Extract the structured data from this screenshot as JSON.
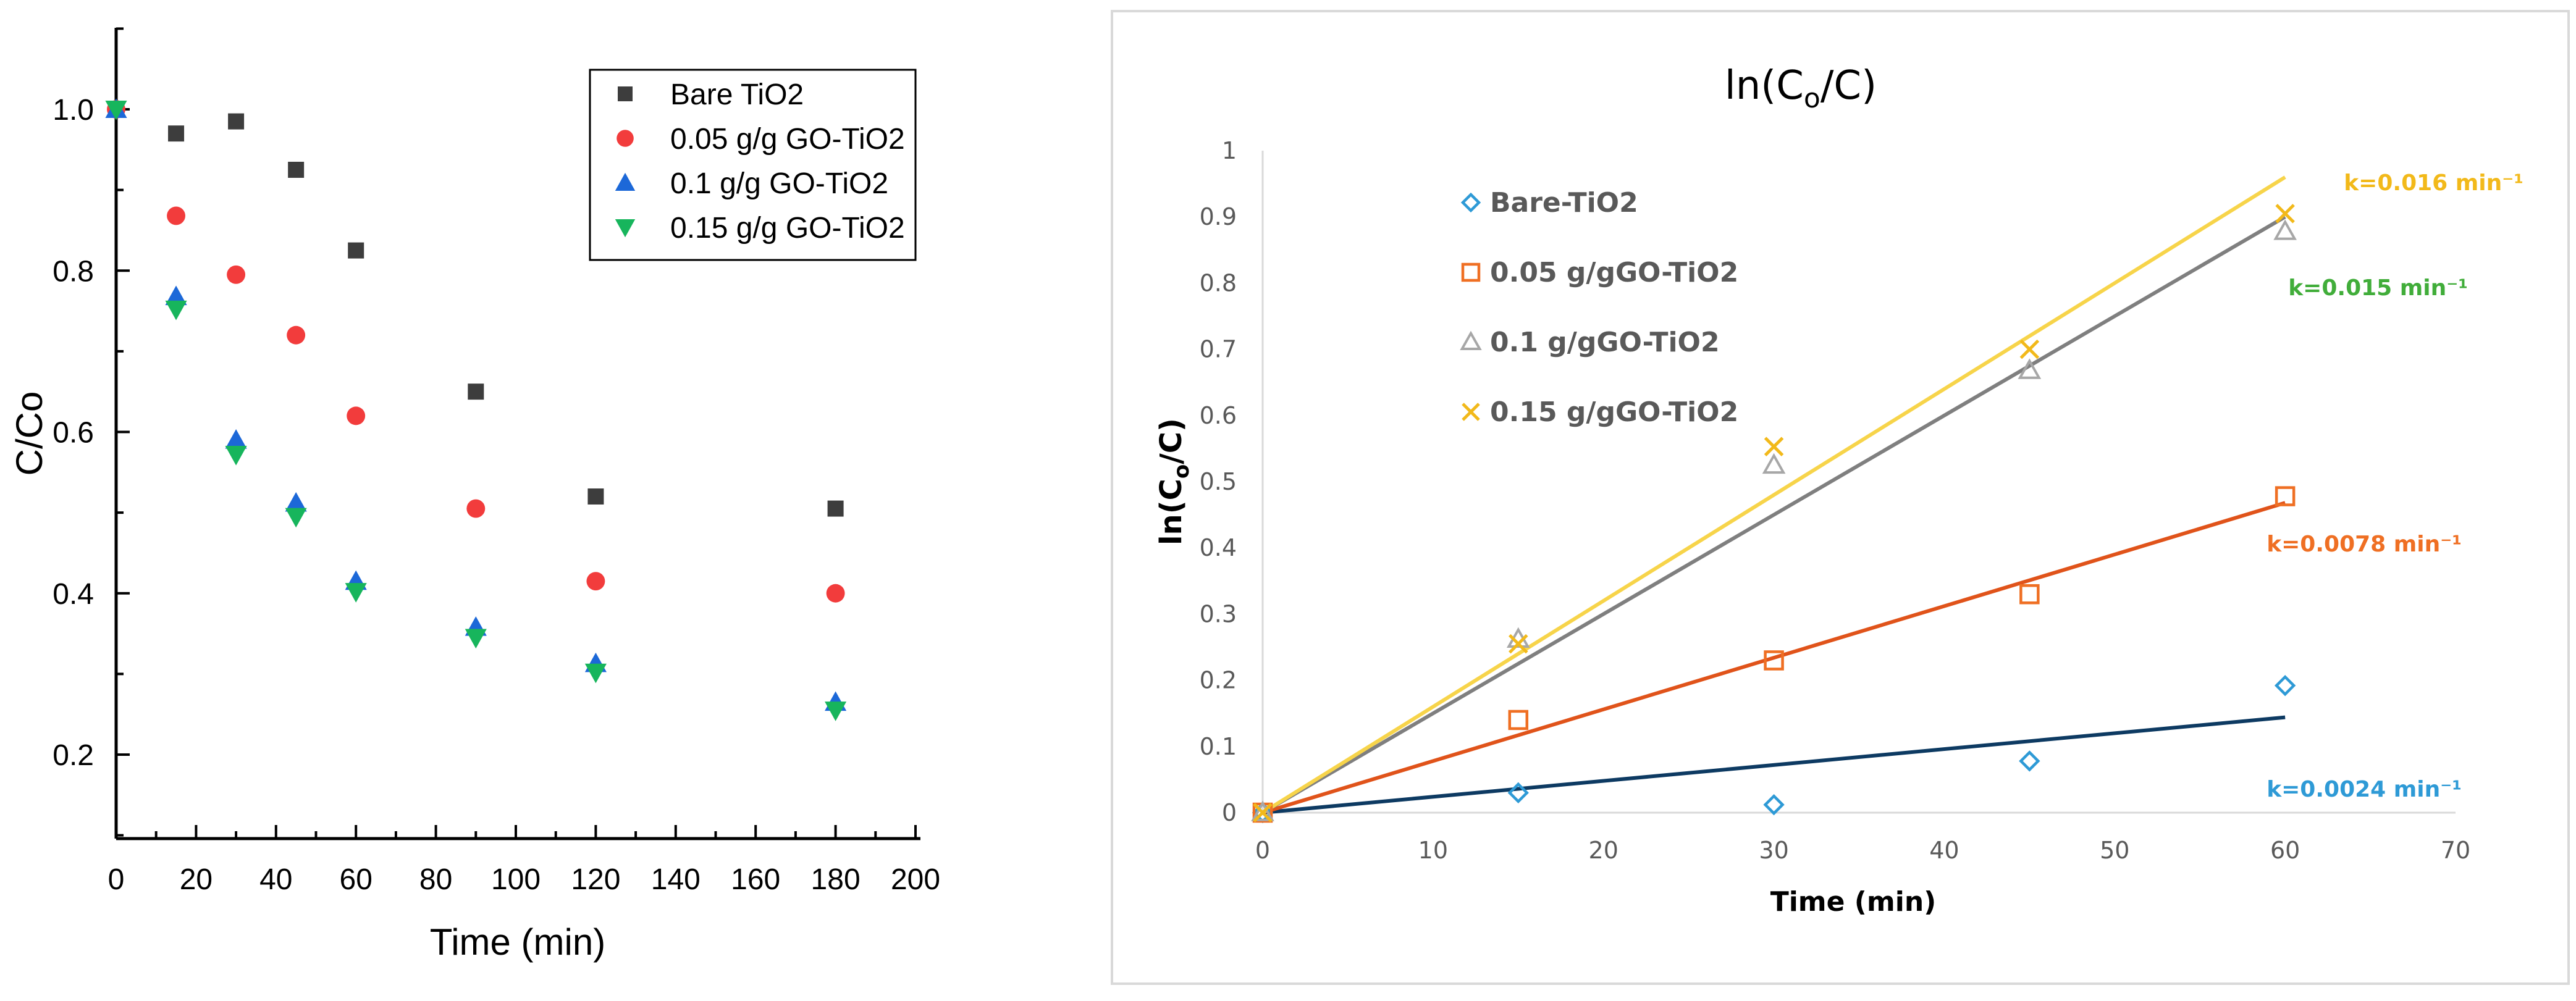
{
  "chart_data": [
    {
      "type": "scatter",
      "xlabel": "Time (min)",
      "ylabel": "C/Co",
      "xlim": [
        0,
        200
      ],
      "ylim": [
        0.1,
        1.1
      ],
      "xticks": [
        "0",
        "20",
        "40",
        "60",
        "80",
        "100",
        "120",
        "140",
        "160",
        "180",
        "200"
      ],
      "yticks": [
        "0.2",
        "0.4",
        "0.6",
        "0.8",
        "1.0"
      ],
      "legend_position": "top-right",
      "x": [
        0,
        15,
        30,
        45,
        60,
        90,
        120,
        180
      ],
      "series": [
        {
          "name": "Bare TiO2",
          "marker": "square",
          "color": "#3d3d3d",
          "values": [
            1.0,
            0.97,
            0.985,
            0.925,
            0.825,
            0.65,
            0.52,
            0.505
          ]
        },
        {
          "name": "0.05 g/g GO-TiO2",
          "marker": "circle",
          "color": "#f23c3c",
          "values": [
            1.0,
            0.868,
            0.795,
            0.72,
            0.62,
            0.505,
            0.415,
            0.4
          ]
        },
        {
          "name": "0.1 g/g GO-TiO2",
          "marker": "triangle-up",
          "color": "#1c68d8",
          "values": [
            1.0,
            0.768,
            0.59,
            0.512,
            0.415,
            0.358,
            0.313,
            0.265
          ]
        },
        {
          "name": "0.15 g/g GO-TiO2",
          "marker": "triangle-down",
          "color": "#17b55c",
          "values": [
            1.0,
            0.752,
            0.572,
            0.495,
            0.402,
            0.345,
            0.302,
            0.255
          ]
        }
      ]
    },
    {
      "type": "scatter",
      "title": "ln(Co/C)",
      "xlabel": "Time (min)",
      "ylabel": "ln(Co/C)",
      "xlim": [
        0,
        70
      ],
      "ylim": [
        0,
        1
      ],
      "xticks": [
        "0",
        "10",
        "20",
        "30",
        "40",
        "50",
        "60",
        "70"
      ],
      "yticks": [
        "0",
        "0.1",
        "0.2",
        "0.3",
        "0.4",
        "0.5",
        "0.6",
        "0.7",
        "0.8",
        "0.9",
        "1"
      ],
      "legend_position": "top-left",
      "x": [
        0,
        15,
        30,
        45,
        60
      ],
      "series": [
        {
          "name": "Bare-TiO2",
          "marker": "diamond",
          "color": "#2e9ad6",
          "trend_color": "#0d3a62",
          "values": [
            0,
            0.03,
            0.012,
            0.078,
            0.192
          ],
          "k": 0.0024,
          "k_label": "k=0.0024 min⁻¹",
          "k_color": "#2e9ad6"
        },
        {
          "name": "0.05 g/gGO-TiO2",
          "marker": "square",
          "color": "#ef6f23",
          "trend_color": "#e0531a",
          "values": [
            0,
            0.14,
            0.23,
            0.33,
            0.478
          ],
          "k": 0.0078,
          "k_label": "k=0.0078 min⁻¹",
          "k_color": "#ef6f23"
        },
        {
          "name": "0.1 g/gGO-TiO2",
          "marker": "triangle",
          "color": "#a7a7a7",
          "trend_color": "#7f7f7f",
          "values": [
            0,
            0.262,
            0.525,
            0.668,
            0.878
          ],
          "k": 0.015,
          "k_label": "k=0.015 min⁻¹",
          "k_color": "#41ad3a"
        },
        {
          "name": "0.15 g/gGO-TiO2",
          "marker": "x",
          "color": "#f2b91a",
          "trend_color": "#f7d44a",
          "values": [
            0,
            0.255,
            0.553,
            0.7,
            0.905
          ],
          "k": 0.016,
          "k_label": "k=0.016 min⁻¹",
          "k_color": "#f2b91a"
        }
      ]
    }
  ]
}
